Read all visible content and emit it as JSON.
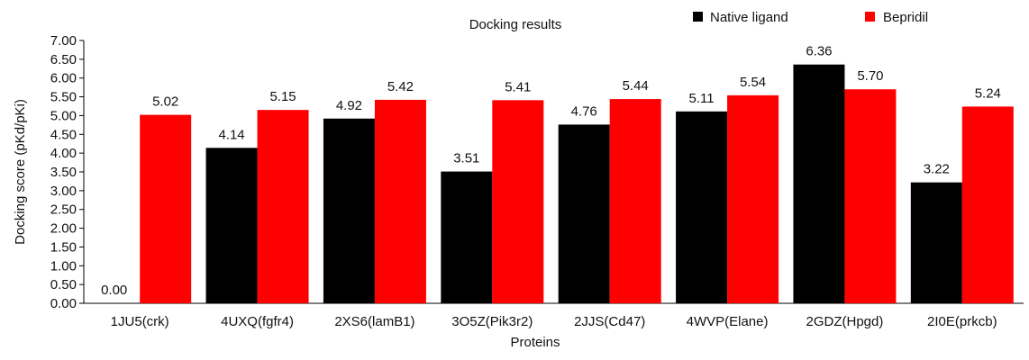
{
  "chart_data": {
    "type": "bar",
    "title": "Docking results",
    "xlabel": "Proteins",
    "ylabel": "Docking score (pKd/pKi)",
    "ylim": [
      0,
      7
    ],
    "yticks": [
      "0.00",
      "0.50",
      "1.00",
      "1.50",
      "2.00",
      "2.50",
      "3.00",
      "3.50",
      "4.00",
      "4.50",
      "5.00",
      "5.50",
      "6.00",
      "6.50",
      "7.00"
    ],
    "grid": false,
    "legend_position": "top-right",
    "categories": [
      "1JU5(crk)",
      "4UXQ(fgfr4)",
      "2XS6(lamB1)",
      "3O5Z(Pik3r2)",
      "2JJS(Cd47)",
      "4WVP(Elane)",
      "2GDZ(Hpgd)",
      "2I0E(prkcb)"
    ],
    "series": [
      {
        "name": "Native ligand",
        "color": "#000000",
        "values": [
          0.0,
          4.14,
          4.92,
          3.51,
          4.76,
          5.11,
          6.36,
          3.22
        ],
        "labels": [
          "0.00",
          "4.14",
          "4.92",
          "3.51",
          "4.76",
          "5.11",
          "6.36",
          "3.22"
        ]
      },
      {
        "name": "Bepridil",
        "color": "#ff0000",
        "values": [
          5.02,
          5.15,
          5.42,
          5.41,
          5.44,
          5.54,
          5.7,
          5.24
        ],
        "labels": [
          "5.02",
          "5.15",
          "5.42",
          "5.41",
          "5.44",
          "5.54",
          "5.70",
          "5.24"
        ]
      }
    ]
  }
}
